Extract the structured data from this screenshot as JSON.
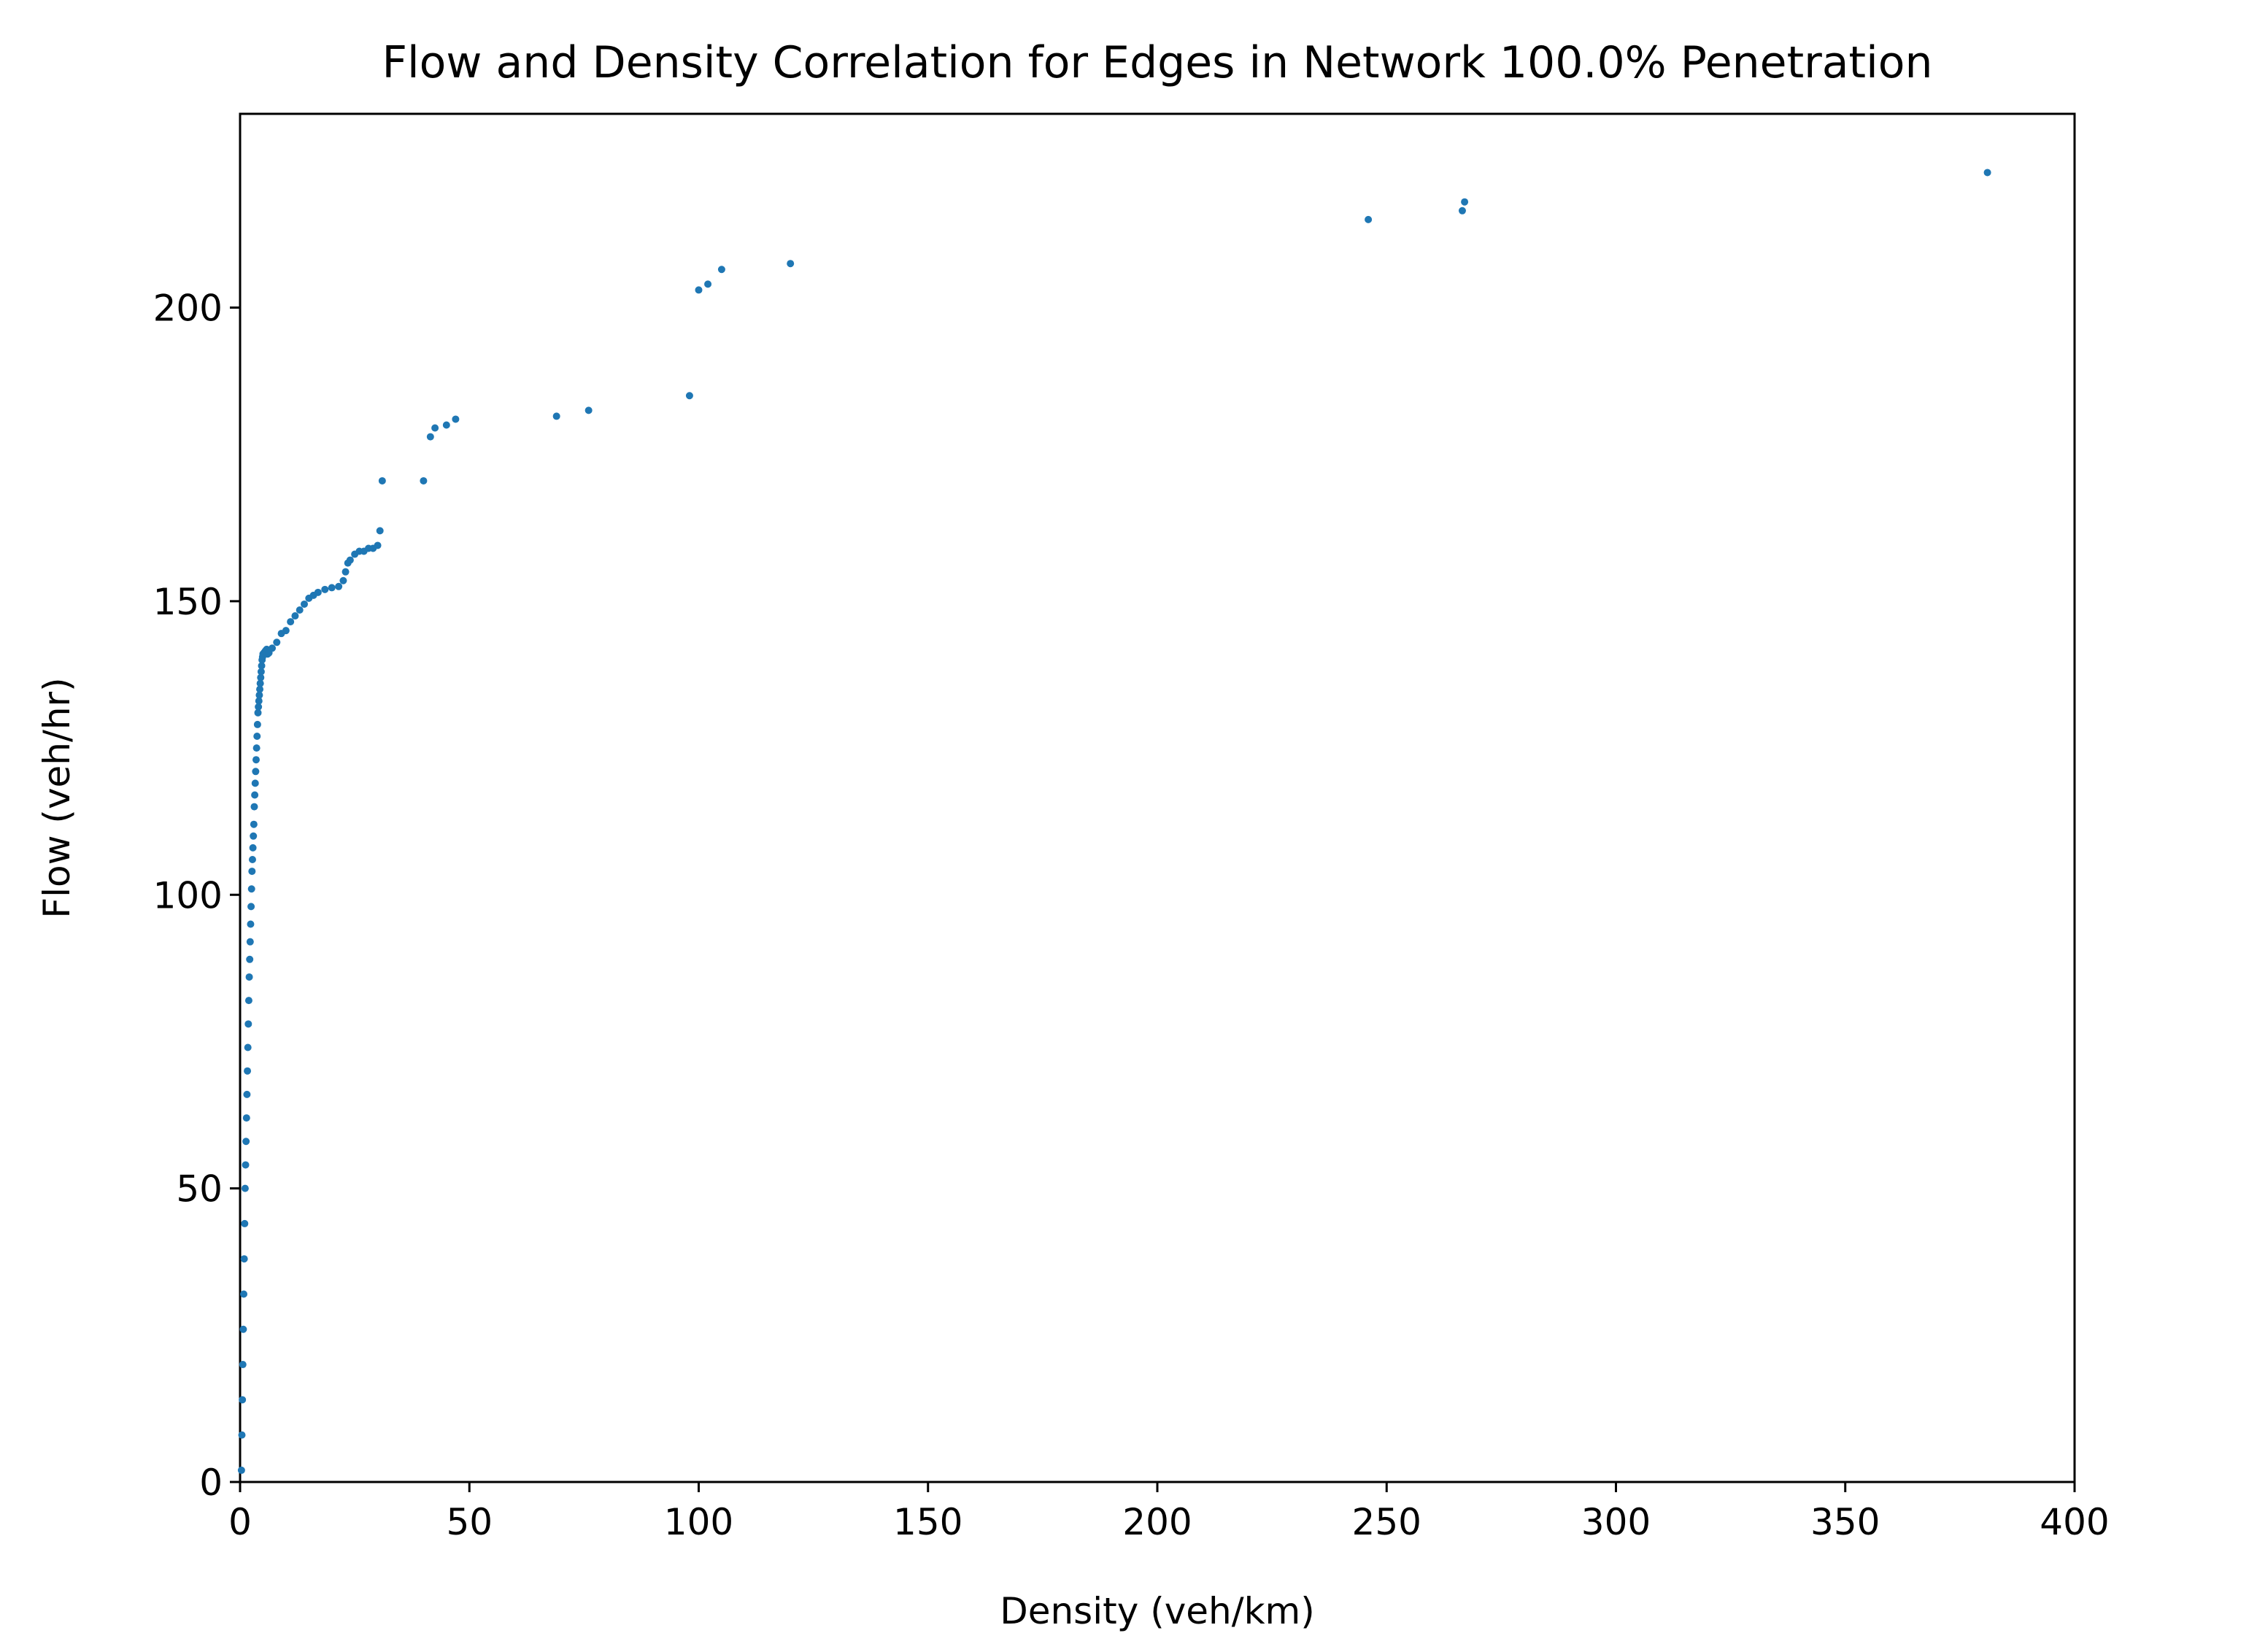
{
  "chart_data": {
    "type": "scatter",
    "title": "Flow and Density Correlation for Edges in Network 100.0% Penetration",
    "xlabel": "Density (veh/km)",
    "ylabel": "Flow (veh/hr)",
    "xlim": [
      0,
      400
    ],
    "ylim": [
      0,
      233
    ],
    "xticks": [
      0,
      50,
      100,
      150,
      200,
      250,
      300,
      350,
      400
    ],
    "yticks": [
      0,
      50,
      100,
      150,
      200
    ],
    "grid": false,
    "legend": "none",
    "marker_color": "#1f77b4",
    "series": [
      {
        "x": [
          0.3,
          0.4,
          0.5,
          0.6,
          0.7,
          0.8,
          0.9,
          1.0,
          1.1,
          1.2,
          1.3,
          1.4,
          1.5,
          1.6,
          1.7,
          1.8,
          1.9,
          2.0,
          2.1,
          2.2,
          2.3,
          2.4,
          2.5,
          2.6,
          2.7,
          2.8,
          2.9,
          3.0,
          3.1,
          3.2,
          3.3,
          3.4,
          3.5,
          3.6,
          3.7,
          3.8,
          3.9,
          4.0,
          4.1,
          4.2,
          4.3,
          4.4,
          4.5,
          4.6,
          4.7,
          4.8,
          4.9,
          5.0,
          5.2,
          5.4,
          5.6,
          5.8,
          6.0,
          6.3,
          7.0,
          8.0,
          9.0,
          10.0,
          11.0,
          12.0,
          13.0,
          14.0,
          15.0,
          16.0,
          17.0,
          18.5,
          20.0,
          21.5,
          22.5,
          23.0,
          23.5,
          24.0,
          25.0,
          26.0,
          27.0,
          28.0,
          29.0,
          30.0,
          30.5,
          31.0,
          40.0,
          41.5,
          42.5,
          45.0,
          47.0,
          69.0,
          76.0,
          98.0,
          100.0,
          102.0,
          105.0,
          120.0,
          246.0,
          266.5,
          267.0,
          381.0
        ],
        "y": [
          2,
          8,
          14,
          20,
          26,
          32,
          38,
          44,
          50,
          54,
          58,
          62,
          66,
          70,
          74,
          78,
          82,
          86,
          89,
          92,
          95,
          98,
          101,
          104,
          106,
          108,
          110,
          112,
          115,
          117,
          119,
          121,
          123,
          125,
          127,
          129,
          131,
          132,
          133,
          134,
          135,
          136,
          137,
          138,
          139,
          140,
          140.5,
          141,
          141.2,
          141.4,
          141.6,
          141.8,
          141,
          141.2,
          142,
          143,
          144.5,
          145,
          146.5,
          147.5,
          148.5,
          149.5,
          150.5,
          151,
          151.5,
          152,
          152.3,
          152.5,
          153.5,
          155,
          156.5,
          157,
          158,
          158.5,
          158.5,
          159,
          159,
          159.5,
          162,
          170.5,
          170.5,
          178,
          179.5,
          180,
          181,
          181.5,
          182.5,
          185,
          203,
          204,
          206.5,
          207.5,
          215,
          216.5,
          218,
          223
        ]
      }
    ]
  }
}
